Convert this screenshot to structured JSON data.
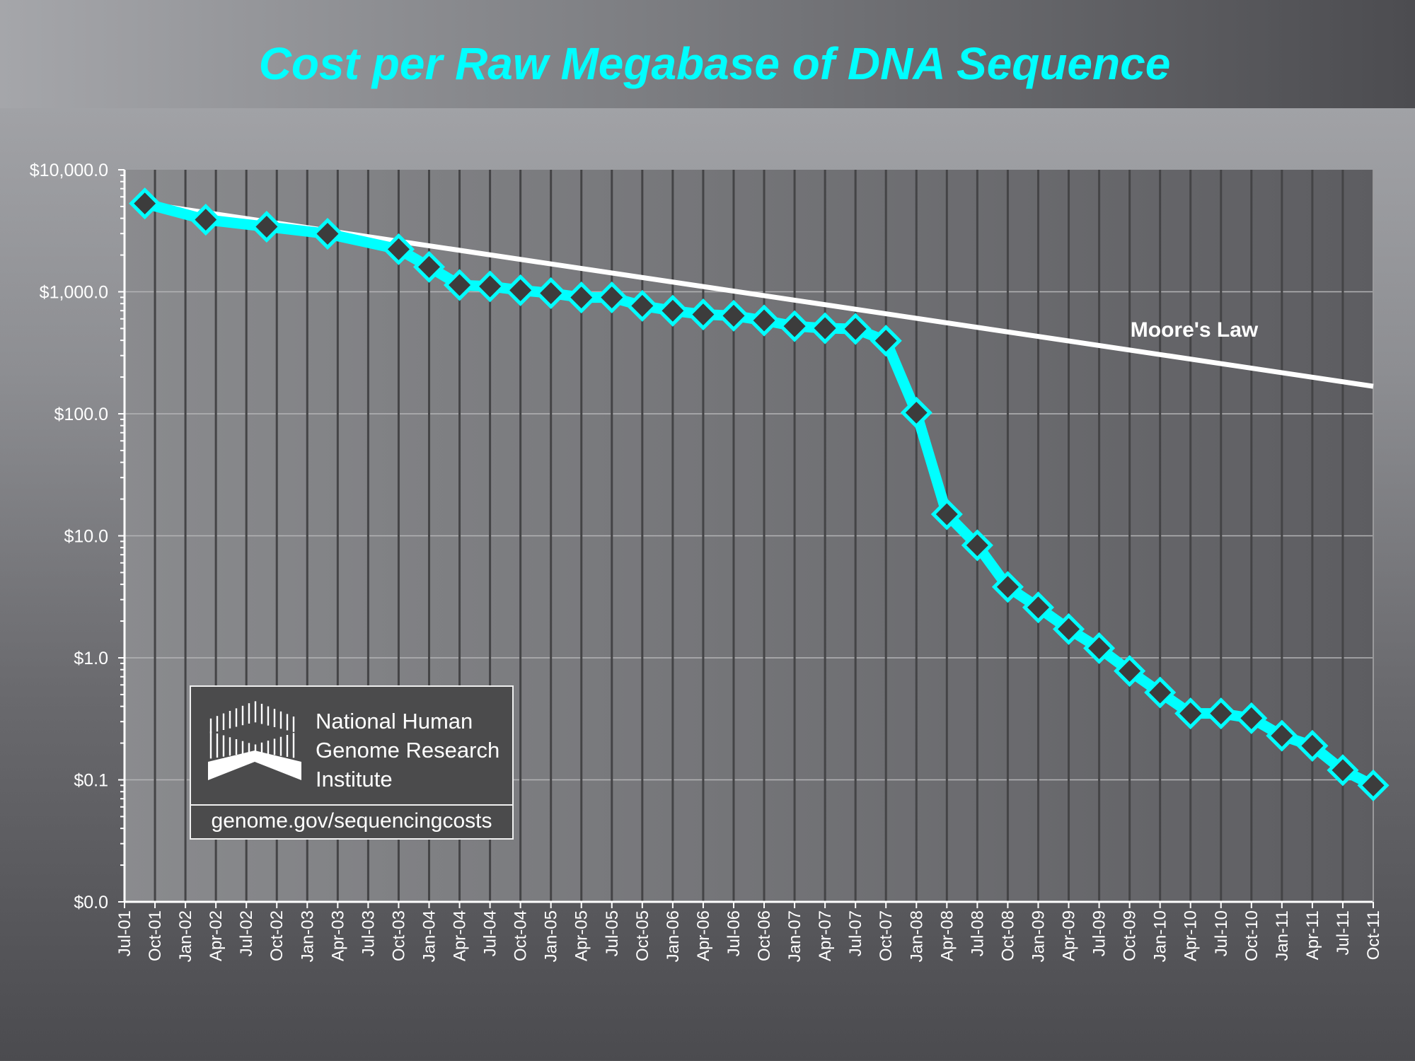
{
  "title": "Cost per Raw Megabase of DNA Sequence",
  "colors": {
    "series": "#00ffff",
    "marker_fill": "#3c3c3c",
    "moore": "#ffffff",
    "grid": "#444446"
  },
  "logo": {
    "org_lines": [
      "National Human",
      "Genome Research",
      "Institute"
    ],
    "url": "genome.gov/sequencingcosts"
  },
  "chart_data": {
    "type": "line",
    "title": "Cost per Raw Megabase of DNA Sequence",
    "xlabel": "",
    "ylabel": "",
    "yscale": "log",
    "ylim": [
      0.01,
      10000
    ],
    "y_ticks": [
      10000,
      1000,
      100,
      10,
      1,
      0.1,
      0.01
    ],
    "y_tick_labels": [
      "$10,000.0",
      "$1,000.0",
      "$100.0",
      "$10.0",
      "$1.0",
      "$0.1",
      "$0.0"
    ],
    "x_tick_labels": [
      "Jul-01",
      "Oct-01",
      "Jan-02",
      "Apr-02",
      "Jul-02",
      "Oct-02",
      "Jan-03",
      "Apr-03",
      "Jul-03",
      "Oct-03",
      "Jan-04",
      "Apr-04",
      "Jul-04",
      "Oct-04",
      "Jan-05",
      "Apr-05",
      "Jul-05",
      "Oct-05",
      "Jan-06",
      "Apr-06",
      "Jul-06",
      "Oct-06",
      "Jan-07",
      "Apr-07",
      "Jul-07",
      "Oct-07",
      "Jan-08",
      "Apr-08",
      "Jul-08",
      "Oct-08",
      "Jan-09",
      "Apr-09",
      "Jul-09",
      "Oct-09",
      "Jan-10",
      "Apr-10",
      "Jul-10",
      "Oct-10",
      "Jan-11",
      "Apr-11",
      "Jul-11",
      "Oct-11"
    ],
    "grid": "vertical lines at each quarter, horizontal at each decade",
    "series": [
      {
        "name": "Cost per Raw Megabase",
        "x": [
          "Sep-01",
          "Mar-02",
          "Sep-02",
          "Mar-03",
          "Oct-03",
          "Jan-04",
          "Apr-04",
          "Jul-04",
          "Oct-04",
          "Jan-05",
          "Apr-05",
          "Jul-05",
          "Oct-05",
          "Jan-06",
          "Apr-06",
          "Jul-06",
          "Oct-06",
          "Jan-07",
          "Apr-07",
          "Jul-07",
          "Oct-07",
          "Jan-08",
          "Apr-08",
          "Jul-08",
          "Oct-08",
          "Jan-09",
          "Apr-09",
          "Jul-09",
          "Oct-09",
          "Jan-10",
          "Apr-10",
          "Jul-10",
          "Oct-10",
          "Jan-11",
          "Apr-11",
          "Jul-11",
          "Oct-11"
        ],
        "months_since_jul01": [
          2,
          8,
          14,
          20,
          27,
          30,
          33,
          36,
          39,
          42,
          45,
          48,
          51,
          54,
          57,
          60,
          63,
          66,
          69,
          72,
          75,
          78,
          81,
          84,
          87,
          90,
          93,
          96,
          99,
          102,
          105,
          108,
          111,
          114,
          117,
          120,
          123
        ],
        "values": [
          5292.39,
          3898.64,
          3413.8,
          2986.2,
          2230.98,
          1598.91,
          1135.7,
          1107.46,
          1028.85,
          974.16,
          897.76,
          898.9,
          766.73,
          699.2,
          651.81,
          636.41,
          581.92,
          522.71,
          502.61,
          495.96,
          397.09,
          102.13,
          15.03,
          8.36,
          3.81,
          2.59,
          1.72,
          1.2,
          0.78,
          0.52,
          0.35,
          0.35,
          0.32,
          0.23,
          0.19,
          0.12,
          0.09
        ]
      },
      {
        "name": "Moore's Law",
        "x": [
          "Sep-01",
          "Oct-11"
        ],
        "months_since_jul01": [
          2,
          123
        ],
        "values": [
          5292.39,
          168
        ]
      }
    ],
    "annotations": [
      {
        "text": "Moore's Law",
        "near": "upper-right above Moore's Law line"
      }
    ]
  }
}
